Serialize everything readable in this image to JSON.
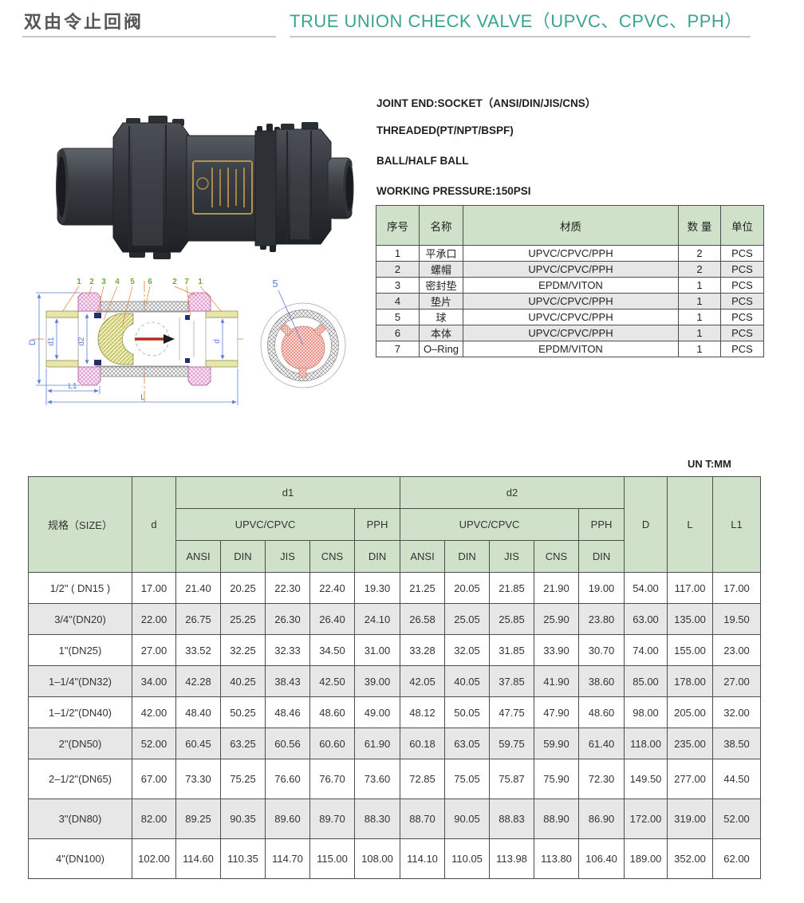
{
  "colors": {
    "accent_teal": "#3ba392",
    "table_header_green": "#cfe1c9",
    "row_alt_gray": "#e7e7e7",
    "table_border": "#4d4d4d",
    "callout_green": "#6fae3e",
    "leader_orange": "#e4833f",
    "dimension_blue": "#5b7fd4",
    "hatch_pink": "#d77fc0",
    "hatch_khaki": "#a4a43c",
    "ball_red": "#d9574a"
  },
  "header": {
    "title_cn": "双由令止回阀",
    "title_en": "TRUE UNION CHECK VALVE（UPVC、CPVC、PPH）"
  },
  "specs": {
    "lines": [
      "JOINT END:SOCKET（ANSI/DIN/JIS/CNS）",
      "THREADED(PT/NPT/BSPF)",
      "BALL/HALF BALL",
      "WORKING PRESSURE:150PSI"
    ]
  },
  "parts_table": {
    "headers": [
      "序号",
      "名称",
      "材质",
      "数 量",
      "单位"
    ],
    "rows": [
      [
        "1",
        "平承口",
        "UPVC/CPVC/PPH",
        "2",
        "PCS"
      ],
      [
        "2",
        "螺帽",
        "UPVC/CPVC/PPH",
        "2",
        "PCS"
      ],
      [
        "3",
        "密封垫",
        "EPDM/VITON",
        "1",
        "PCS"
      ],
      [
        "4",
        "垫片",
        "UPVC/CPVC/PPH",
        "1",
        "PCS"
      ],
      [
        "5",
        "球",
        "UPVC/CPVC/PPH",
        "1",
        "PCS"
      ],
      [
        "6",
        "本体",
        "UPVC/CPVC/PPH",
        "1",
        "PCS"
      ],
      [
        "7",
        "O–Ring",
        "EPDM/VITON",
        "1",
        "PCS"
      ]
    ]
  },
  "dimensions_table": {
    "unit_note": "UN T:MM",
    "header": {
      "size": "规格（SIZE）",
      "d": "d",
      "d1": "d1",
      "d2": "d2",
      "material": "UPVC/CPVC",
      "pph": "PPH",
      "standards": [
        "ANSI",
        "DIN",
        "JIS",
        "CNS",
        "DIN"
      ],
      "D": "D",
      "L": "L",
      "L1": "L1"
    },
    "rows": [
      {
        "size": "1/2\" ( DN15 )",
        "values": [
          "17.00",
          "21.40",
          "20.25",
          "22.30",
          "22.40",
          "19.30",
          "21.25",
          "20.05",
          "21.85",
          "21.90",
          "19.00",
          "54.00",
          "117.00",
          "17.00"
        ]
      },
      {
        "size": "3/4\"(DN20)",
        "values": [
          "22.00",
          "26.75",
          "25.25",
          "26.30",
          "26.40",
          "24.10",
          "26.58",
          "25.05",
          "25.85",
          "25.90",
          "23.80",
          "63.00",
          "135.00",
          "19.50"
        ]
      },
      {
        "size": "1\"(DN25)",
        "values": [
          "27.00",
          "33.52",
          "32.25",
          "32.33",
          "34.50",
          "31.00",
          "33.28",
          "32.05",
          "31.85",
          "33.90",
          "30.70",
          "74.00",
          "155.00",
          "23.00"
        ]
      },
      {
        "size": "1–1/4\"(DN32)",
        "values": [
          "34.00",
          "42.28",
          "40.25",
          "38.43",
          "42.50",
          "39.00",
          "42.05",
          "40.05",
          "37.85",
          "41.90",
          "38.60",
          "85.00",
          "178.00",
          "27.00"
        ]
      },
      {
        "size": "1–1/2\"(DN40)",
        "values": [
          "42.00",
          "48.40",
          "50.25",
          "48.46",
          "48.60",
          "49.00",
          "48.12",
          "50.05",
          "47.75",
          "47.90",
          "48.60",
          "98.00",
          "205.00",
          "32.00"
        ]
      },
      {
        "size": "2\"(DN50)",
        "values": [
          "52.00",
          "60.45",
          "63.25",
          "60.56",
          "60.60",
          "61.90",
          "60.18",
          "63.05",
          "59.75",
          "59.90",
          "61.40",
          "118.00",
          "235.00",
          "38.50"
        ]
      },
      {
        "size": "2–1/2\"(DN65)",
        "values": [
          "67.00",
          "73.30",
          "75.25",
          "76.60",
          "76.70",
          "73.60",
          "72.85",
          "75.05",
          "75.87",
          "75.90",
          "72.30",
          "149.50",
          "277.00",
          "44.50"
        ]
      },
      {
        "size": "3\"(DN80)",
        "values": [
          "82.00",
          "89.25",
          "90.35",
          "89.60",
          "89.70",
          "88.30",
          "88.70",
          "90.05",
          "88.83",
          "88.90",
          "86.90",
          "172.00",
          "319.00",
          "52.00"
        ]
      },
      {
        "size": "4\"(DN100)",
        "values": [
          "102.00",
          "114.60",
          "110.35",
          "114.70",
          "115.00",
          "108.00",
          "114.10",
          "110.05",
          "113.98",
          "113.80",
          "106.40",
          "189.00",
          "352.00",
          "62.00"
        ]
      }
    ]
  },
  "drawing": {
    "callouts": [
      "1",
      "2",
      "3",
      "4",
      "5",
      "6",
      "2",
      "7",
      "1"
    ],
    "end_view_callout": "5",
    "dim_labels": {
      "D": "D",
      "d1": "d1",
      "d2": "d2",
      "d": "d",
      "L1": "L1",
      "L": "L"
    }
  }
}
